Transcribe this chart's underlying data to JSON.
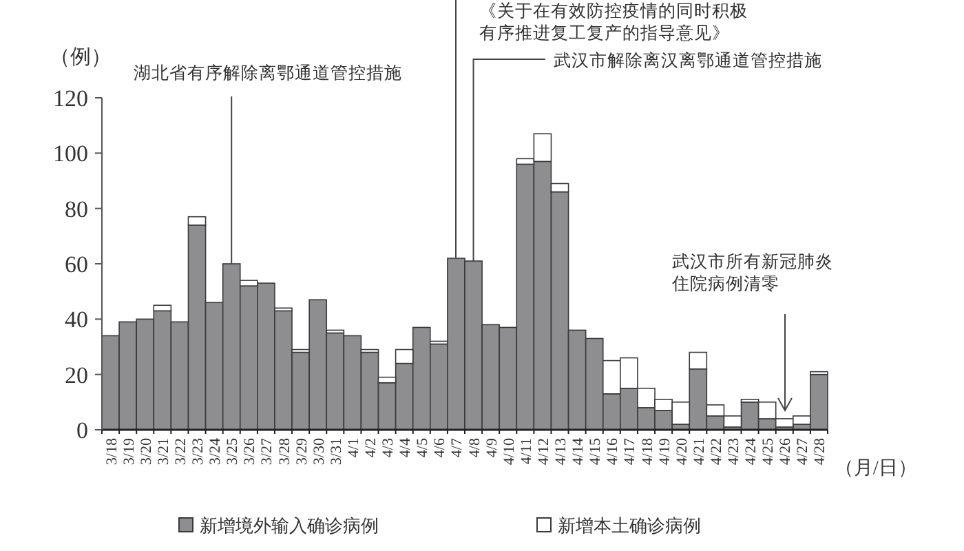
{
  "chart_data": {
    "type": "bar",
    "stacked": true,
    "ylabel": "（例）",
    "xlabel": "（月/日）",
    "ylim": [
      0,
      120
    ],
    "yticks": [
      0,
      20,
      40,
      60,
      80,
      100,
      120
    ],
    "legend": "bottom",
    "categories": [
      "3/18",
      "3/19",
      "3/20",
      "3/21",
      "3/22",
      "3/23",
      "3/24",
      "3/25",
      "3/26",
      "3/27",
      "3/28",
      "3/29",
      "3/30",
      "3/31",
      "4/1",
      "4/2",
      "4/3",
      "4/4",
      "4/5",
      "4/6",
      "4/7",
      "4/8",
      "4/9",
      "4/10",
      "4/11",
      "4/12",
      "4/13",
      "4/14",
      "4/15",
      "4/16",
      "4/17",
      "4/18",
      "4/19",
      "4/20",
      "4/21",
      "4/22",
      "4/23",
      "4/24",
      "4/25",
      "4/26",
      "4/27",
      "4/28"
    ],
    "series": [
      {
        "name": "新增境外输入确诊病例",
        "color": "#8e8e90",
        "values": [
          34,
          39,
          40,
          43,
          39,
          74,
          46,
          60,
          52,
          53,
          43,
          28,
          47,
          35,
          34,
          28,
          17,
          24,
          37,
          31,
          62,
          61,
          38,
          37,
          96,
          97,
          86,
          36,
          33,
          13,
          15,
          8,
          7,
          2,
          22,
          5,
          1,
          10,
          4,
          1,
          2,
          20
        ]
      },
      {
        "name": "新增本土确诊病例",
        "color": "#ffffff",
        "values": [
          0,
          0,
          0,
          2,
          0,
          3,
          0,
          0,
          2,
          0,
          1,
          1,
          0,
          1,
          0,
          1,
          2,
          5,
          0,
          1,
          0,
          0,
          0,
          0,
          2,
          10,
          3,
          0,
          0,
          12,
          11,
          7,
          4,
          8,
          6,
          4,
          4,
          1,
          6,
          3,
          3,
          1
        ]
      }
    ],
    "annotations": [
      {
        "text": "湖北省有序解除离鄂通道管控措施",
        "x": "3/25",
        "y": 60
      },
      "《关于在有效防控疫情的同时积极有序推进复工复产的指导意见》",
      {
        "text": "武汉市解除离汉离鄂通道管控措施",
        "x": "4/8",
        "y": 61
      },
      "武汉市所有新冠肺炎住院病例清零"
    ]
  }
}
